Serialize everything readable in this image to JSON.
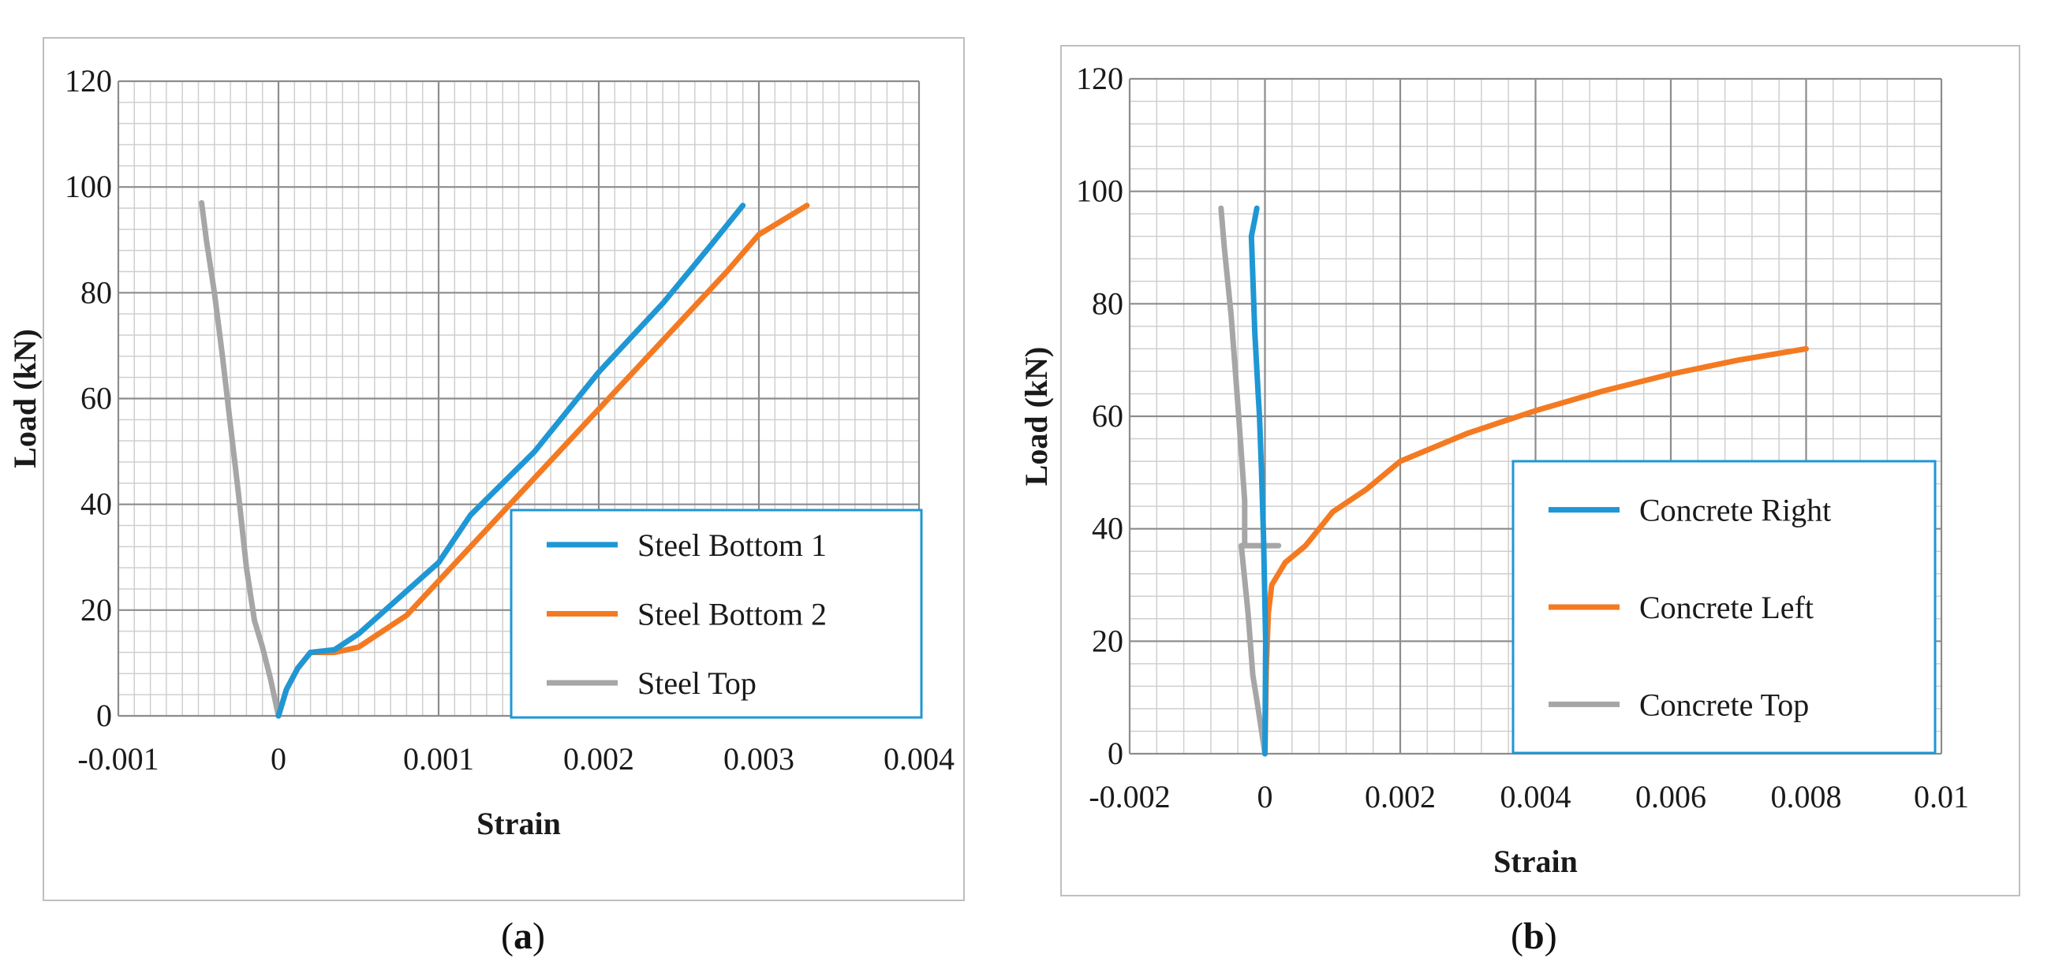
{
  "chart_data": [
    {
      "type": "line",
      "panel_label": "a",
      "title": "",
      "xlabel": "Strain",
      "ylabel": "Load (kN)",
      "xlim": [
        -0.001,
        0.004
      ],
      "ylim": [
        0,
        120
      ],
      "xticks": [
        -0.001,
        0,
        0.001,
        0.002,
        0.003,
        0.004
      ],
      "xtick_labels": [
        "-0.001",
        "0",
        "0.001",
        "0.002",
        "0.003",
        "0.004"
      ],
      "yticks": [
        0,
        20,
        40,
        60,
        80,
        100,
        120
      ],
      "ytick_labels": [
        "0",
        "20",
        "40",
        "60",
        "80",
        "100",
        "120"
      ],
      "minor_x": 0.0001,
      "minor_y": 4,
      "grid": true,
      "legend_position": "bottom-right",
      "series": [
        {
          "name": "Steel Bottom 1",
          "color": "#1f97d4",
          "points": [
            [
              0,
              0
            ],
            [
              5e-05,
              5
            ],
            [
              0.00012,
              9
            ],
            [
              0.0002,
              12
            ],
            [
              0.00035,
              12.5
            ],
            [
              0.0005,
              15.5
            ],
            [
              0.001,
              29
            ],
            [
              0.0012,
              38
            ],
            [
              0.0016,
              50
            ],
            [
              0.002,
              65
            ],
            [
              0.0024,
              78
            ],
            [
              0.0027,
              89
            ],
            [
              0.0029,
              96.5
            ]
          ]
        },
        {
          "name": "Steel Bottom 2",
          "color": "#f47a22",
          "points": [
            [
              0,
              0
            ],
            [
              5e-05,
              5
            ],
            [
              0.00012,
              9
            ],
            [
              0.0002,
              12
            ],
            [
              0.00035,
              12
            ],
            [
              0.0005,
              13
            ],
            [
              0.0008,
              19
            ],
            [
              0.0012,
              32
            ],
            [
              0.0016,
              45
            ],
            [
              0.002,
              58
            ],
            [
              0.0024,
              71
            ],
            [
              0.0028,
              84
            ],
            [
              0.003,
              91
            ],
            [
              0.0033,
              96.5
            ]
          ]
        },
        {
          "name": "Steel Top",
          "color": "#a6a6a6",
          "points": [
            [
              0,
              0
            ],
            [
              -5e-05,
              7
            ],
            [
              -0.0001,
              13
            ],
            [
              -0.00015,
              18
            ],
            [
              -0.0002,
              28
            ],
            [
              -0.00025,
              42
            ],
            [
              -0.0003,
              55
            ],
            [
              -0.00035,
              68
            ],
            [
              -0.0004,
              80
            ],
            [
              -0.00045,
              90
            ],
            [
              -0.00048,
              97
            ]
          ]
        }
      ]
    },
    {
      "type": "line",
      "panel_label": "b",
      "title": "",
      "xlabel": "Strain",
      "ylabel": "Load (kN)",
      "xlim": [
        -0.002,
        0.01
      ],
      "ylim": [
        0,
        120
      ],
      "xticks": [
        -0.002,
        0,
        0.002,
        0.004,
        0.006,
        0.008,
        0.01
      ],
      "xtick_labels": [
        "-0.002",
        "0",
        "0.002",
        "0.004",
        "0.006",
        "0.008",
        "0.01"
      ],
      "yticks": [
        0,
        20,
        40,
        60,
        80,
        100,
        120
      ],
      "ytick_labels": [
        "0",
        "20",
        "40",
        "60",
        "80",
        "100",
        "120"
      ],
      "minor_x": 0.0004,
      "minor_y": 4,
      "grid": true,
      "legend_position": "right",
      "series": [
        {
          "name": "Concrete Right",
          "color": "#1f97d4",
          "points": [
            [
              0,
              0
            ],
            [
              1e-05,
              20
            ],
            [
              -2e-05,
              38
            ],
            [
              -5e-05,
              50
            ],
            [
              -8e-05,
              60
            ],
            [
              -0.0001,
              64
            ],
            [
              -0.00015,
              75
            ],
            [
              -0.00018,
              85
            ],
            [
              -0.0002,
              92
            ],
            [
              -0.00015,
              95
            ],
            [
              -0.00012,
              97
            ]
          ]
        },
        {
          "name": "Concrete Left",
          "color": "#f47a22",
          "points": [
            [
              0,
              0
            ],
            [
              2e-05,
              15
            ],
            [
              5e-05,
              25
            ],
            [
              0.0001,
              30
            ],
            [
              0.0003,
              34
            ],
            [
              0.0006,
              37
            ],
            [
              0.001,
              43
            ],
            [
              0.0015,
              47
            ],
            [
              0.002,
              52
            ],
            [
              0.003,
              57
            ],
            [
              0.004,
              61
            ],
            [
              0.005,
              64.5
            ],
            [
              0.006,
              67.5
            ],
            [
              0.007,
              70
            ],
            [
              0.008,
              72
            ]
          ]
        },
        {
          "name": "Concrete Top",
          "color": "#a6a6a6",
          "points": [
            [
              0,
              0
            ],
            [
              -0.0001,
              8
            ],
            [
              -0.00018,
              14
            ],
            [
              -0.00025,
              25
            ],
            [
              -0.00035,
              37
            ],
            [
              -0.0002,
              37
            ],
            [
              0.0002,
              37
            ],
            [
              -0.0003,
              37
            ],
            [
              -0.0003,
              45
            ],
            [
              -0.0004,
              62
            ],
            [
              -0.0005,
              78
            ],
            [
              -0.0006,
              90
            ],
            [
              -0.00065,
              97
            ]
          ]
        }
      ]
    }
  ],
  "captions": {
    "a": "a",
    "b": "b"
  }
}
